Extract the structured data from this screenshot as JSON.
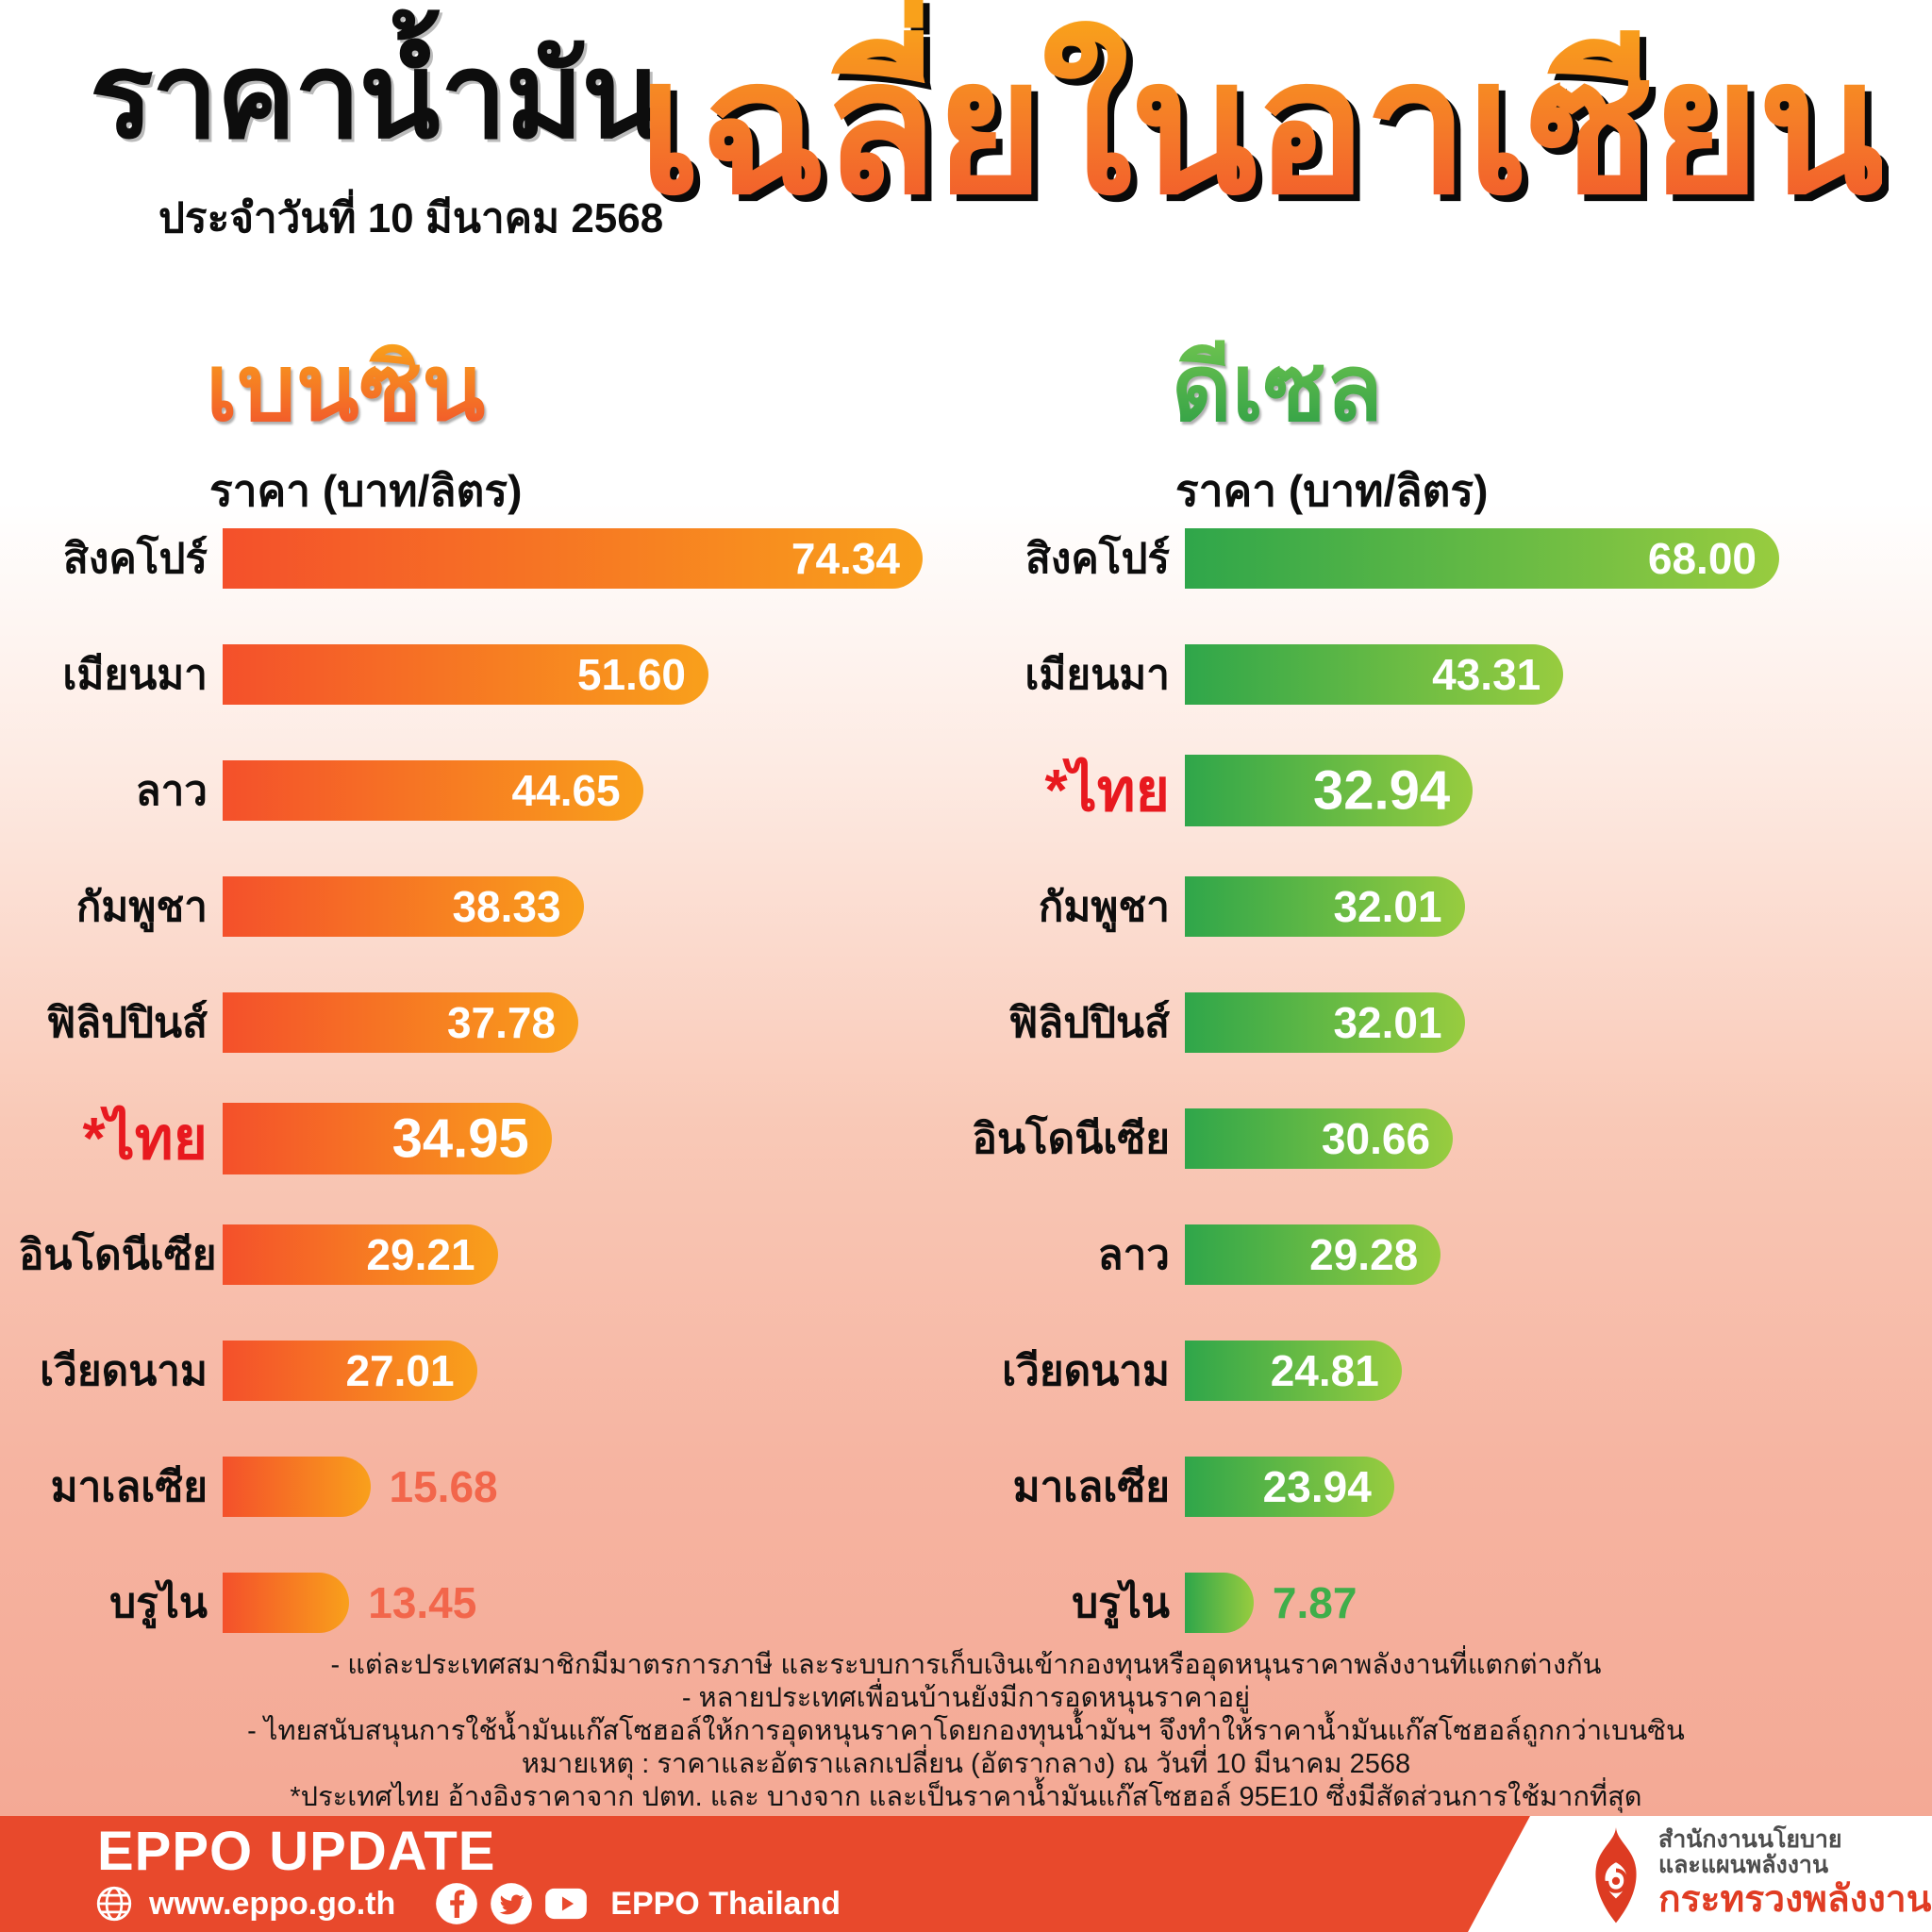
{
  "header": {
    "title_black": "ราคาน้ำมัน",
    "date_line": "ประจำวันที่ 10 มีนาคม 2568",
    "title_orange": "เฉลี่ยในอาเซียน"
  },
  "chart_data": [
    {
      "id": "benzine",
      "type": "bar",
      "orientation": "horizontal",
      "title": "เบนซิน",
      "unit": "ราคา (บาท/ลิตร)",
      "categories": [
        "สิงคโปร์",
        "เมียนมา",
        "ลาว",
        "กัมพูชา",
        "ฟิลิปปินส์",
        "*ไทย",
        "อินโดนีเซีย",
        "เวียดนาม",
        "มาเลเซีย",
        "บรูไน"
      ],
      "values": [
        74.34,
        51.6,
        44.65,
        38.33,
        37.78,
        34.95,
        29.21,
        27.01,
        15.68,
        13.45
      ],
      "value_labels": [
        "74.34",
        "51.60",
        "44.65",
        "38.33",
        "37.78",
        "34.95",
        "29.21",
        "27.01",
        "15.68",
        "13.45"
      ],
      "value_inside_bar": [
        true,
        true,
        true,
        true,
        true,
        true,
        true,
        true,
        false,
        false
      ],
      "highlight_category": "*ไทย",
      "xlim": [
        0,
        74.34
      ],
      "bar_gradient": [
        "#F4502B",
        "#F9A01B"
      ],
      "outside_value_color": "#F2664B",
      "legend": "none",
      "grid": "off"
    },
    {
      "id": "diesel",
      "type": "bar",
      "orientation": "horizontal",
      "title": "ดีเซล",
      "unit": "ราคา (บาท/ลิตร)",
      "categories": [
        "สิงคโปร์",
        "เมียนมา",
        "*ไทย",
        "กัมพูชา",
        "ฟิลิปปินส์",
        "อินโดนีเซีย",
        "ลาว",
        "เวียดนาม",
        "มาเลเซีย",
        "บรูไน"
      ],
      "values": [
        68.0,
        43.31,
        32.94,
        32.01,
        32.01,
        30.66,
        29.28,
        24.81,
        23.94,
        7.87
      ],
      "value_labels": [
        "68.00",
        "43.31",
        "32.94",
        "32.01",
        "32.01",
        "30.66",
        "29.28",
        "24.81",
        "23.94",
        "7.87"
      ],
      "value_inside_bar": [
        true,
        true,
        true,
        true,
        true,
        true,
        true,
        true,
        true,
        false
      ],
      "highlight_category": "*ไทย",
      "xlim": [
        0,
        68.0
      ],
      "bar_gradient": [
        "#2FA64A",
        "#98CC3F"
      ],
      "outside_value_color": "#3FAE4A",
      "legend": "none",
      "grid": "off"
    }
  ],
  "notes": [
    "- แต่ละประเทศสมาชิกมีมาตรการภาษี และระบบการเก็บเงินเข้ากองทุนหรืออุดหนุนราคาพลังงานที่แตกต่างกัน",
    "- หลายประเทศเพื่อนบ้านยังมีการอุดหนุนราคาอยู่",
    "- ไทยสนับสนุนการใช้น้ำมันแก๊สโซฮอล์ให้การอุดหนุนราคาโดยกองทุนน้ำมันฯ จึงทำให้ราคาน้ำมันแก๊สโซฮอล์ถูกกว่าเบนซิน",
    "หมายเหตุ :  ราคาและอัตราแลกเปลี่ยน (อัตรากลาง) ณ วันที่ 10 มีนาคม 2568",
    "*ประเทศไทย อ้างอิงราคาจาก ปตท. และ บางจาก และเป็นราคาน้ำมันแก๊สโซฮอล์ 95E10 ซึ่งมีสัดส่วนการใช้มากที่สุด"
  ],
  "footer": {
    "brand": "EPPO UPDATE",
    "website": "www.eppo.go.th",
    "social_text": "EPPO Thailand",
    "icons": [
      "globe-icon",
      "facebook-icon",
      "twitter-icon",
      "youtube-icon"
    ]
  },
  "logo": {
    "icon": "flame-icon",
    "line1": "สำนักงานนโยบาย",
    "line2": "และแผนพลังงาน",
    "line3": "กระทรวงพลังงาน"
  },
  "colors": {
    "highlight_red": "#E8191F",
    "footer_band": "#E8492C",
    "title_orange_gradient": [
      "#F9A11B",
      "#F1512D"
    ],
    "diesel_heading_gradient": [
      "#6CC24F",
      "#2E9F46"
    ],
    "background_bottom": "#F4A995",
    "logo_red": "#E03C23"
  }
}
